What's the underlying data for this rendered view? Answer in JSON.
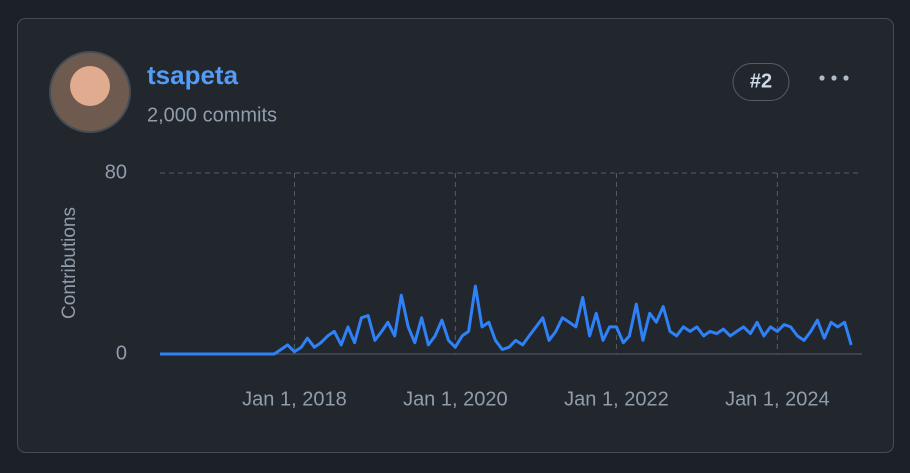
{
  "user": {
    "name": "tsapeta",
    "commits": "2,000 commits",
    "rank": "#2"
  },
  "chart_data": {
    "type": "line",
    "ylabel": "Contributions",
    "color": "#2f81f7",
    "x": [
      "2016-05-01",
      "2016-06-01",
      "2016-07-01",
      "2016-08-01",
      "2016-09-01",
      "2016-10-01",
      "2016-11-01",
      "2016-12-01",
      "2017-01-01",
      "2017-02-01",
      "2017-03-01",
      "2017-04-01",
      "2017-05-01",
      "2017-06-01",
      "2017-07-01",
      "2017-08-01",
      "2017-09-01",
      "2017-10-01",
      "2017-11-01",
      "2017-12-01",
      "2018-01-01",
      "2018-02-01",
      "2018-03-01",
      "2018-04-01",
      "2018-05-01",
      "2018-06-01",
      "2018-07-01",
      "2018-08-01",
      "2018-09-01",
      "2018-10-01",
      "2018-11-01",
      "2018-12-01",
      "2019-01-01",
      "2019-02-01",
      "2019-03-01",
      "2019-04-01",
      "2019-05-01",
      "2019-06-01",
      "2019-07-01",
      "2019-08-01",
      "2019-09-01",
      "2019-10-01",
      "2019-11-01",
      "2019-12-01",
      "2020-01-01",
      "2020-02-01",
      "2020-03-01",
      "2020-04-01",
      "2020-05-01",
      "2020-06-01",
      "2020-07-01",
      "2020-08-01",
      "2020-09-01",
      "2020-10-01",
      "2020-11-01",
      "2020-12-01",
      "2021-01-01",
      "2021-02-01",
      "2021-03-01",
      "2021-04-01",
      "2021-05-01",
      "2021-06-01",
      "2021-07-01",
      "2021-08-01",
      "2021-09-01",
      "2021-10-01",
      "2021-11-01",
      "2021-12-01",
      "2022-01-01",
      "2022-02-01",
      "2022-03-01",
      "2022-04-01",
      "2022-05-01",
      "2022-06-01",
      "2022-07-01",
      "2022-08-01",
      "2022-09-01",
      "2022-10-01",
      "2022-11-01",
      "2022-12-01",
      "2023-01-01",
      "2023-02-01",
      "2023-03-01",
      "2023-04-01",
      "2023-05-01",
      "2023-06-01",
      "2023-07-01",
      "2023-08-01",
      "2023-09-01",
      "2023-10-01",
      "2023-11-01",
      "2023-12-01",
      "2024-01-01",
      "2024-02-01",
      "2024-03-01",
      "2024-04-01",
      "2024-05-01",
      "2024-06-01",
      "2024-07-01",
      "2024-08-01",
      "2024-09-01",
      "2024-10-01",
      "2024-11-01",
      "2024-12-01"
    ],
    "values": [
      0,
      0,
      0,
      0,
      0,
      0,
      0,
      0,
      0,
      0,
      0,
      0,
      0,
      0,
      0,
      0,
      0,
      0,
      2,
      4,
      1,
      3,
      7,
      3,
      5,
      8,
      10,
      4,
      12,
      5,
      16,
      17,
      6,
      10,
      14,
      8,
      26,
      12,
      5,
      16,
      4,
      8,
      15,
      6,
      3,
      8,
      10,
      30,
      12,
      14,
      6,
      2,
      3,
      6,
      4,
      8,
      12,
      16,
      6,
      10,
      16,
      14,
      12,
      25,
      8,
      18,
      6,
      12,
      12,
      5,
      8,
      22,
      6,
      18,
      14,
      21,
      10,
      8,
      12,
      10,
      12,
      8,
      10,
      9,
      11,
      8,
      10,
      12,
      9,
      14,
      8,
      12,
      10,
      13,
      12,
      8,
      6,
      10,
      15,
      7,
      14,
      12,
      14,
      4
    ],
    "xlim": [
      "2016-05-01",
      "2025-01-01"
    ],
    "xticks": [
      {
        "value": "2018-01-01",
        "label": "Jan 1, 2018"
      },
      {
        "value": "2020-01-01",
        "label": "Jan 1, 2020"
      },
      {
        "value": "2022-01-01",
        "label": "Jan 1, 2022"
      },
      {
        "value": "2024-01-01",
        "label": "Jan 1, 2024"
      }
    ],
    "ylim": [
      0,
      80
    ],
    "yticks": [
      0,
      80
    ],
    "grid": true
  }
}
